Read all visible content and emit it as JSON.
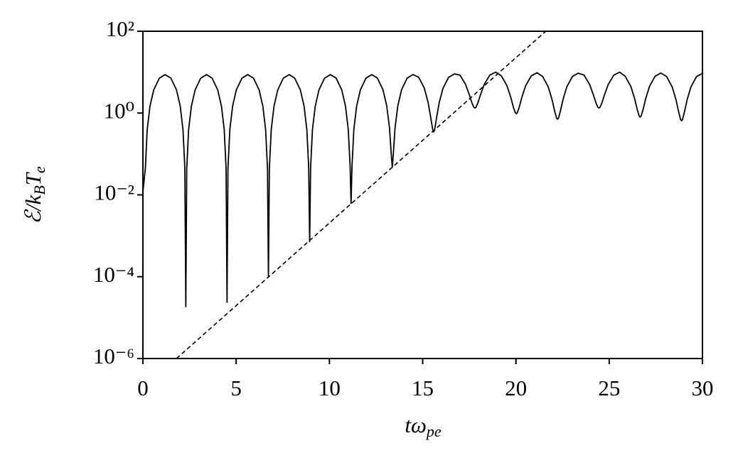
{
  "chart_data": {
    "type": "line",
    "xlabel": "tω_{pe}",
    "ylabel": "ℰ/k_{B}T_{e}",
    "xlim": [
      0,
      30
    ],
    "xticks": [
      0,
      5,
      10,
      15,
      20,
      25,
      30
    ],
    "ylim": [
      1e-06,
      100
    ],
    "yscale": "log",
    "yticks": [
      {
        "value": 1e-06,
        "label": "10⁻⁶"
      },
      {
        "value": 0.0001,
        "label": "10⁻⁴"
      },
      {
        "value": 0.01,
        "label": "10⁻²"
      },
      {
        "value": 1,
        "label": "10⁰"
      },
      {
        "value": 100,
        "label": "10²"
      }
    ],
    "grid": false,
    "series": [
      {
        "color": "#000000",
        "linestyle": "solid",
        "x": [
          0,
          0.13,
          0.23,
          0.38,
          0.58,
          0.88,
          1.19,
          1.5,
          1.8,
          2.0,
          2.15,
          2.25,
          2.3,
          2.35,
          2.45,
          2.6,
          2.8,
          3.1,
          3.41,
          3.71,
          4.01,
          4.21,
          4.36,
          4.46,
          4.51,
          4.56,
          4.66,
          4.81,
          5.01,
          5.31,
          5.62,
          5.93,
          6.23,
          6.43,
          6.58,
          6.68,
          6.73,
          6.78,
          6.88,
          7.03,
          7.23,
          7.53,
          7.84,
          8.14,
          8.44,
          8.64,
          8.79,
          8.89,
          8.94,
          8.99,
          9.09,
          9.24,
          9.44,
          9.74,
          10.05,
          10.36,
          10.66,
          10.86,
          11.01,
          11.11,
          11.16,
          11.21,
          11.31,
          11.46,
          11.66,
          11.96,
          12.27,
          12.57,
          12.87,
          13.07,
          13.22,
          13.32,
          13.37,
          13.42,
          13.52,
          13.67,
          13.87,
          14.17,
          14.48,
          14.79,
          15.09,
          15.29,
          15.44,
          15.54,
          15.59,
          15.64,
          15.74,
          15.89,
          16.09,
          16.39,
          16.7,
          17.0,
          17.3,
          17.5,
          17.65,
          17.75,
          17.8,
          17.85,
          17.95,
          18.1,
          18.3,
          18.6,
          18.91,
          19.22,
          19.52,
          19.72,
          19.87,
          19.97,
          20.02,
          20.07,
          20.17,
          20.32,
          20.52,
          20.82,
          21.13,
          21.43,
          21.73,
          21.93,
          22.08,
          22.18,
          22.23,
          22.28,
          22.38,
          22.53,
          22.73,
          23.03,
          23.34,
          23.65,
          23.95,
          24.15,
          24.3,
          24.4,
          24.45,
          24.5,
          24.6,
          24.75,
          24.95,
          25.25,
          25.56,
          25.86,
          26.16,
          26.36,
          26.51,
          26.61,
          26.66,
          26.71,
          26.81,
          26.96,
          27.16,
          27.46,
          27.77,
          28.08,
          28.38,
          28.58,
          28.73,
          28.83,
          28.88,
          28.93,
          29.03,
          29.18,
          29.38,
          29.68,
          30.0
        ],
        "values": [
          0.012,
          0.044,
          0.39,
          1.48,
          3.68,
          7.13,
          8.7,
          7.13,
          3.68,
          1.48,
          0.39,
          0.044,
          1.8e-05,
          0.044,
          0.39,
          1.48,
          3.68,
          7.13,
          8.7,
          7.13,
          3.68,
          1.48,
          0.39,
          0.044,
          2.3e-05,
          0.044,
          0.39,
          1.48,
          3.68,
          7.13,
          8.7,
          7.13,
          3.68,
          1.48,
          0.39,
          0.044,
          0.0001,
          0.044,
          0.39,
          1.48,
          3.68,
          7.13,
          8.7,
          7.13,
          3.68,
          1.48,
          0.39,
          0.045,
          0.0007,
          0.045,
          0.39,
          1.48,
          3.68,
          7.13,
          8.7,
          7.14,
          3.69,
          1.49,
          0.4,
          0.05,
          0.006,
          0.05,
          0.4,
          1.49,
          3.69,
          7.14,
          8.71,
          7.18,
          3.73,
          1.53,
          0.44,
          0.091,
          0.047,
          0.091,
          0.44,
          1.53,
          3.73,
          7.18,
          8.75,
          7.48,
          4.03,
          1.83,
          0.74,
          0.39,
          0.35,
          0.39,
          0.74,
          1.83,
          4.03,
          7.48,
          9.05,
          8.46,
          5.01,
          2.81,
          1.72,
          1.37,
          1.33,
          1.37,
          1.72,
          2.81,
          5.01,
          8.46,
          10.0,
          8.1,
          4.65,
          2.45,
          1.36,
          1.01,
          0.97,
          1.01,
          1.36,
          2.45,
          4.65,
          8.1,
          9.67,
          7.84,
          4.39,
          2.19,
          1.1,
          0.75,
          0.71,
          0.75,
          1.1,
          2.19,
          4.39,
          7.84,
          9.41,
          8.46,
          5.01,
          2.81,
          1.72,
          1.37,
          1.33,
          1.37,
          1.72,
          2.81,
          5.01,
          8.46,
          10.0,
          7.93,
          4.48,
          2.28,
          1.19,
          0.84,
          0.8,
          0.84,
          1.19,
          2.28,
          4.48,
          7.93,
          9.5,
          7.78,
          4.33,
          2.13,
          1.04,
          0.69,
          0.65,
          0.69,
          1.04,
          2.13,
          4.33,
          7.78,
          9.35
        ]
      },
      {
        "color": "#000000",
        "linestyle": "dashed",
        "x": [
          1.8,
          21.6
        ],
        "values": [
          1e-06,
          100
        ]
      }
    ]
  }
}
